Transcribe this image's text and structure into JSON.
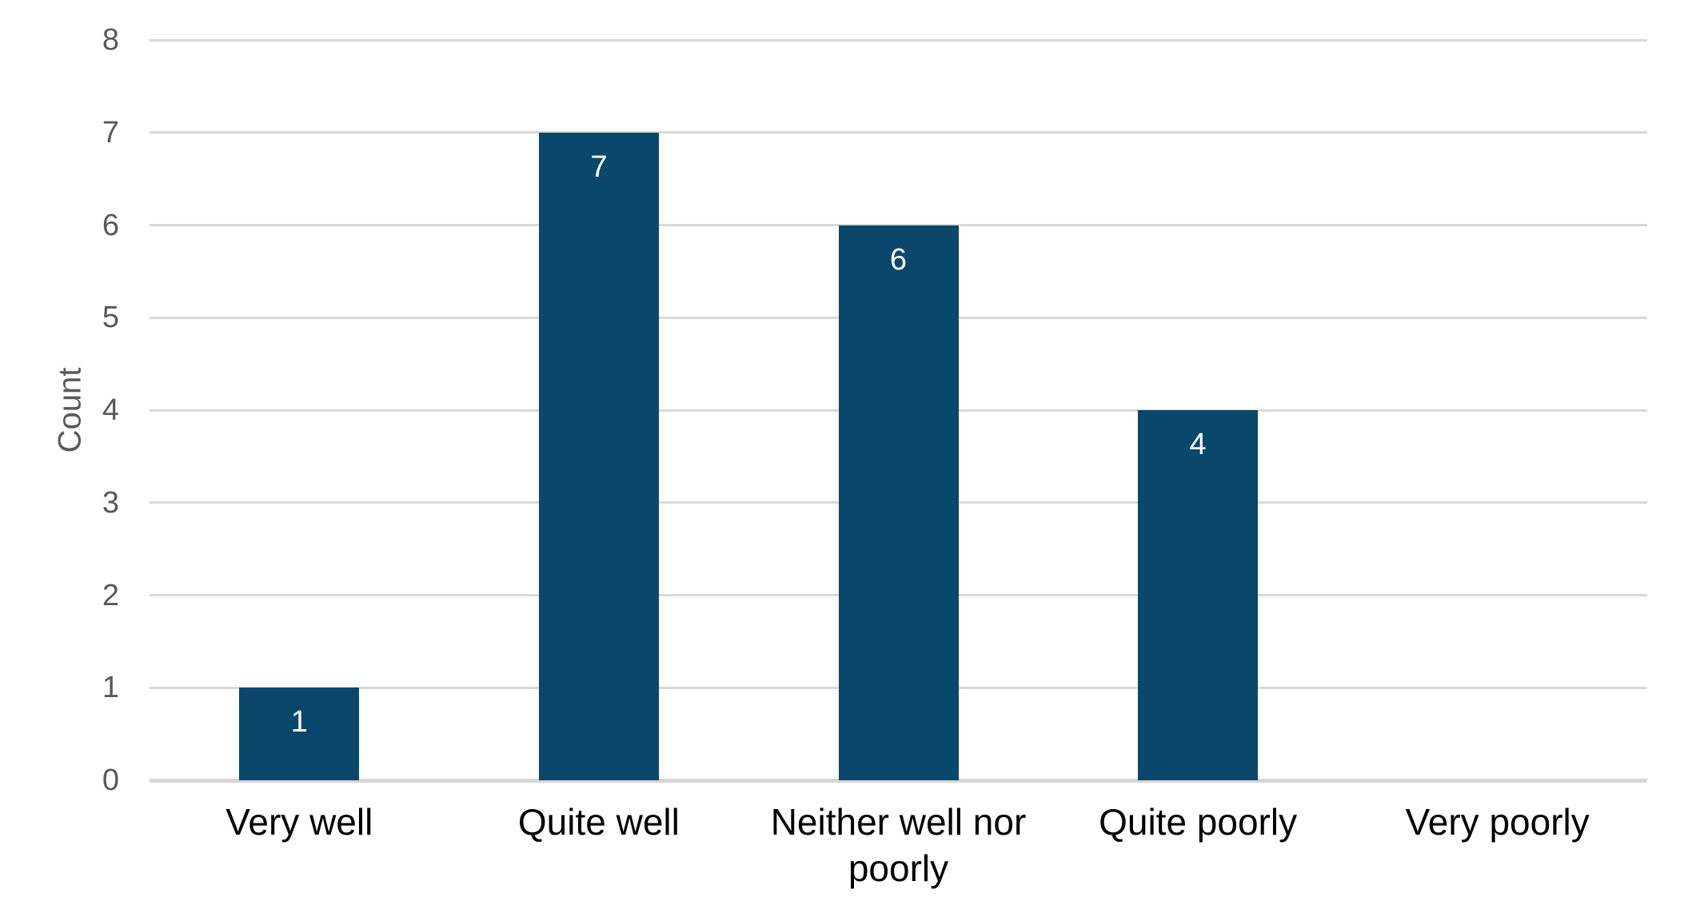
{
  "chart_data": {
    "type": "bar",
    "title": "",
    "categories": [
      "Very well",
      "Quite well",
      "Neither well nor poorly",
      "Quite poorly",
      "Very poorly"
    ],
    "values": [
      1,
      7,
      6,
      4,
      0
    ],
    "data_labels": [
      "1",
      "7",
      "6",
      "4",
      ""
    ],
    "xlabel": "",
    "ylabel": "Count",
    "ylim": [
      0,
      8
    ],
    "yticks": [
      0,
      1,
      2,
      3,
      4,
      5,
      6,
      7,
      8
    ],
    "grid": "horizontal gridlines on",
    "legend": "none"
  },
  "style": {
    "bar_color": "#0A486B",
    "gridline_color": "#D9D9D9",
    "axis_line_color": "#D6D6D6",
    "tick_label_color": "#595959",
    "axis_title_color": "#595959",
    "category_label_color": "#000000",
    "data_label_color": "#FFFFFF",
    "background_color": "#FFFFFF"
  }
}
